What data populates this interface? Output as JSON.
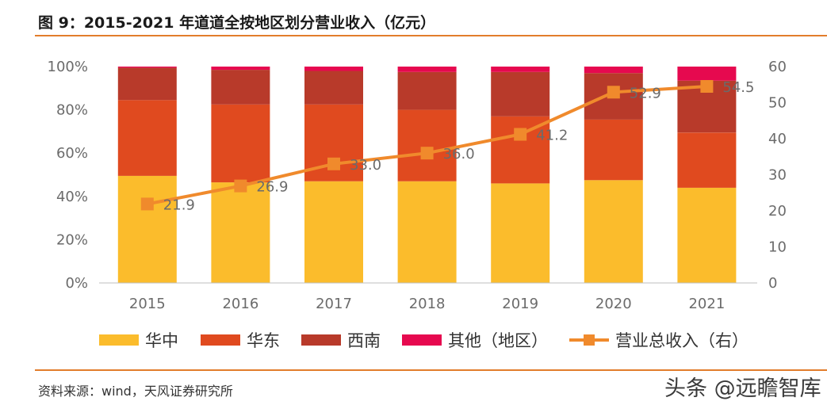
{
  "header": {
    "title": "图 9：2015-2021 年道道全按地区划分营业收入（亿元）"
  },
  "footer": {
    "source": "资料来源：wind，天风证券研究所",
    "watermark": "头条 @远瞻智库"
  },
  "chart_data": {
    "type": "bar",
    "stacked": true,
    "categories": [
      "2015",
      "2016",
      "2017",
      "2018",
      "2019",
      "2020",
      "2021"
    ],
    "series": [
      {
        "name": "华中",
        "color": "#fbbc2c",
        "values": [
          49.5,
          46.5,
          47,
          47,
          46,
          47.5,
          44
        ]
      },
      {
        "name": "华东",
        "color": "#e04a1f",
        "values": [
          35,
          36,
          35.5,
          33,
          31,
          28,
          25.5
        ]
      },
      {
        "name": "西南",
        "color": "#b83a2a",
        "values": [
          15,
          16,
          15.5,
          17.5,
          20.5,
          21.5,
          24
        ]
      },
      {
        "name": "其他（地区）",
        "color": "#e6094f",
        "values": [
          0.5,
          1.5,
          2,
          2.5,
          2.5,
          3,
          6.5
        ]
      }
    ],
    "line_series": {
      "name": "营业总收入（右）",
      "color": "#f08a2c",
      "values": [
        21.9,
        26.9,
        33.0,
        36.0,
        41.2,
        52.9,
        54.5
      ],
      "labels": [
        "21.9",
        "26.9",
        "33.0",
        "36.0",
        "41.2",
        "52.9",
        "54.5"
      ]
    },
    "y_left": {
      "ylim": [
        0,
        100
      ],
      "ticks": [
        "0%",
        "20%",
        "40%",
        "60%",
        "80%",
        "100%"
      ]
    },
    "y_right": {
      "ylim": [
        0,
        60
      ],
      "ticks": [
        "0",
        "10",
        "20",
        "30",
        "40",
        "50",
        "60"
      ]
    },
    "grid": false,
    "legend_position": "bottom"
  }
}
